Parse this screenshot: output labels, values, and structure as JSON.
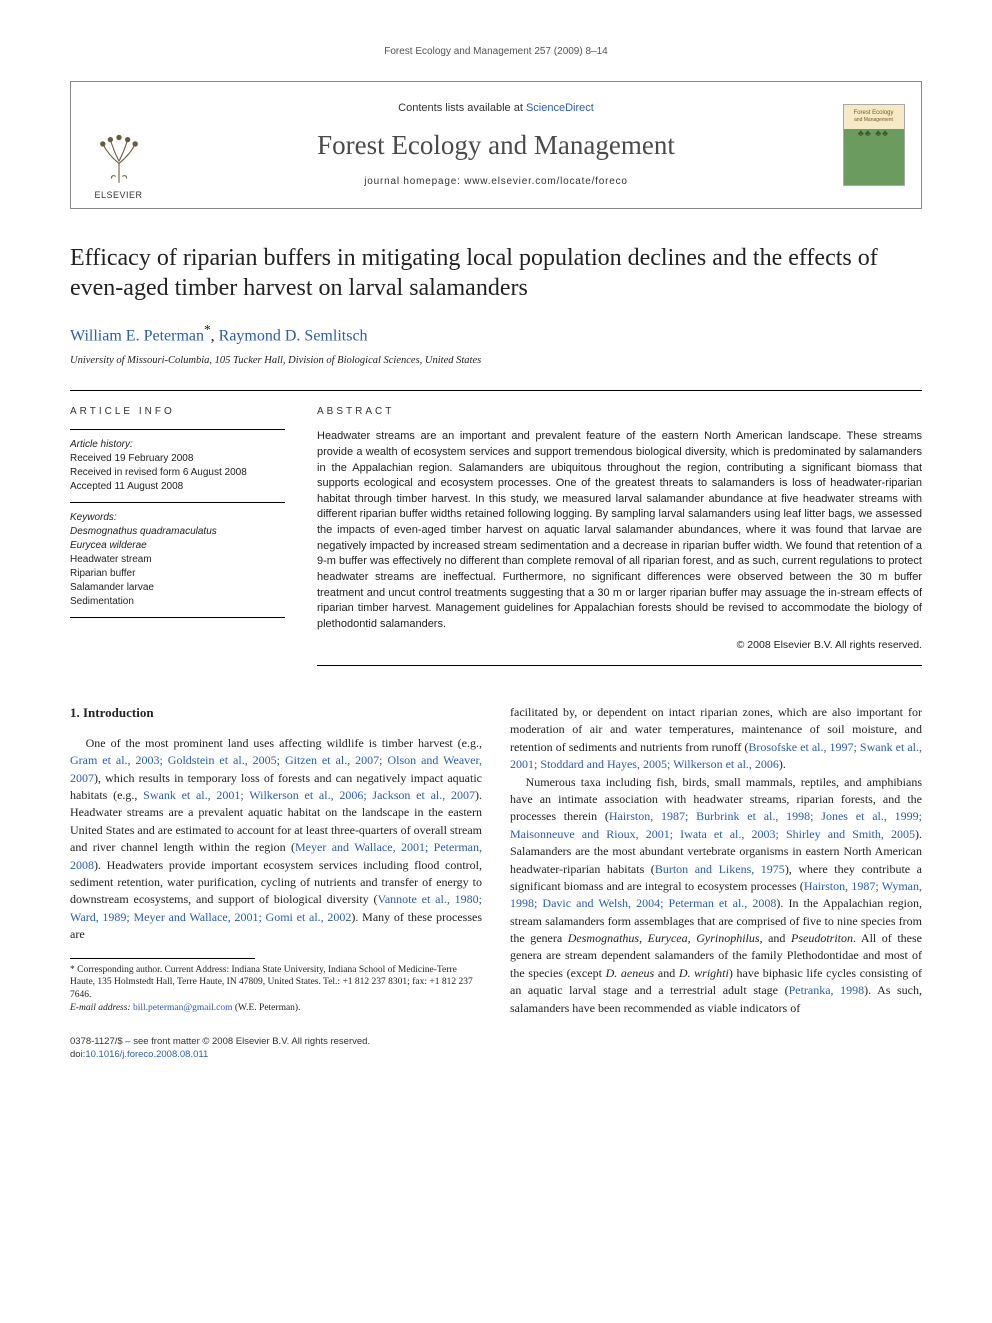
{
  "runningHead": "Forest Ecology and Management 257 (2009) 8–14",
  "banner": {
    "elsevierLabel": "ELSEVIER",
    "contentsPrefix": "Contents lists available at ",
    "contentsLink": "ScienceDirect",
    "journalName": "Forest Ecology and Management",
    "homepageLine": "journal homepage: www.elsevier.com/locate/foreco",
    "coverLine1": "Forest Ecology",
    "coverLine2": "and Management",
    "coverGlyphs": "♣♣ ♣♣"
  },
  "title": "Efficacy of riparian buffers in mitigating local population declines and the effects of even-aged timber harvest on larval salamanders",
  "authors": {
    "a1": "William E. Peterman",
    "a1sup": "*",
    "sep": ", ",
    "a2": "Raymond D. Semlitsch"
  },
  "affiliation": "University of Missouri-Columbia, 105 Tucker Hall, Division of Biological Sciences, United States",
  "info": {
    "heading": "ARTICLE INFO",
    "historyLabel": "Article history:",
    "h1": "Received 19 February 2008",
    "h2": "Received in revised form 6 August 2008",
    "h3": "Accepted 11 August 2008",
    "kwLabel": "Keywords:",
    "kw": [
      {
        "t": "Desmognathus quadramaculatus",
        "it": true
      },
      {
        "t": "Eurycea wilderae",
        "it": true
      },
      {
        "t": "Headwater stream",
        "it": false
      },
      {
        "t": "Riparian buffer",
        "it": false
      },
      {
        "t": "Salamander larvae",
        "it": false
      },
      {
        "t": "Sedimentation",
        "it": false
      }
    ]
  },
  "abstract": {
    "heading": "ABSTRACT",
    "text": "Headwater streams are an important and prevalent feature of the eastern North American landscape. These streams provide a wealth of ecosystem services and support tremendous biological diversity, which is predominated by salamanders in the Appalachian region. Salamanders are ubiquitous throughout the region, contributing a significant biomass that supports ecological and ecosystem processes. One of the greatest threats to salamanders is loss of headwater-riparian habitat through timber harvest. In this study, we measured larval salamander abundance at five headwater streams with different riparian buffer widths retained following logging. By sampling larval salamanders using leaf litter bags, we assessed the impacts of even-aged timber harvest on aquatic larval salamander abundances, where it was found that larvae are negatively impacted by increased stream sedimentation and a decrease in riparian buffer width. We found that retention of a 9-m buffer was effectively no different than complete removal of all riparian forest, and as such, current regulations to protect headwater streams are ineffectual. Furthermore, no significant differences were observed between the 30 m buffer treatment and uncut control treatments suggesting that a 30 m or larger riparian buffer may assuage the in-stream effects of riparian timber harvest. Management guidelines for Appalachian forests should be revised to accommodate the biology of plethodontid salamanders.",
    "copyright": "© 2008 Elsevier B.V. All rights reserved."
  },
  "body": {
    "sectionNum": "1.",
    "sectionTitle": "Introduction",
    "leftHtml": "One of the most prominent land uses affecting wildlife is timber harvest (e.g., <a href='#' data-name='cite-link' data-interactable='true'>Gram et al., 2003; Goldstein et al., 2005; Gitzen et al., 2007; Olson and Weaver, 2007</a>), which results in temporary loss of forests and can negatively impact aquatic habitats (e.g., <a href='#' data-name='cite-link' data-interactable='true'>Swank et al., 2001; Wilkerson et al., 2006; Jackson et al., 2007</a>). Headwater streams are a prevalent aquatic habitat on the landscape in the eastern United States and are estimated to account for at least three-quarters of overall stream and river channel length within the region (<a href='#' data-name='cite-link' data-interactable='true'>Meyer and Wallace, 2001; Peterman, 2008</a>). Headwaters provide important ecosystem services including flood control, sediment retention, water purification, cycling of nutrients and transfer of energy to downstream ecosystems, and support of biological diversity (<a href='#' data-name='cite-link' data-interactable='true'>Vannote et al., 1980; Ward, 1989; Meyer and Wallace, 2001; Gomi et al., 2002</a>). Many of these processes are",
    "rightHtml1": "facilitated by, or dependent on intact riparian zones, which are also important for moderation of air and water temperatures, maintenance of soil moisture, and retention of sediments and nutrients from runoff (<a href='#' data-name='cite-link' data-interactable='true'>Brosofske et al., 1997; Swank et al., 2001; Stoddard and Hayes, 2005; Wilkerson et al., 2006</a>).",
    "rightHtml2": "Numerous taxa including fish, birds, small mammals, reptiles, and amphibians have an intimate association with headwater streams, riparian forests, and the processes therein (<a href='#' data-name='cite-link' data-interactable='true'>Hairston, 1987; Burbrink et al., 1998; Jones et al., 1999; Maisonneuve and Rioux, 2001; Iwata et al., 2003; Shirley and Smith, 2005</a>). Salamanders are the most abundant vertebrate organisms in eastern North American headwater-riparian habitats (<a href='#' data-name='cite-link' data-interactable='true'>Burton and Likens, 1975</a>), where they contribute a significant biomass and are integral to ecosystem processes (<a href='#' data-name='cite-link' data-interactable='true'>Hairston, 1987; Wyman, 1998; Davic and Welsh, 2004; Peterman et al., 2008</a>). In the Appalachian region, stream salamanders form assemblages that are comprised of five to nine species from the genera <span class='ital'>Desmognathus, Eurycea, Gyrinophilus,</span> and <span class='ital'>Pseudotriton</span>. All of these genera are stream dependent salamanders of the family Plethodontidae and most of the species (except <span class='ital'>D. aeneus</span> and <span class='ital'>D. wrighti</span>) have biphasic life cycles consisting of an aquatic larval stage and a terrestrial adult stage (<a href='#' data-name='cite-link' data-interactable='true'>Petranka, 1998</a>). As such, salamanders have been recommended as viable indicators of"
  },
  "footnote": {
    "text": "* Corresponding author. Current Address: Indiana State University, Indiana School of Medicine-Terre Haute, 135 Holmstedt Hall, Terre Haute, IN 47809, United States. Tel.: +1 812 237 8301; fax: +1 812 237 7646.",
    "emailLabel": "E-mail address: ",
    "email": "bill.peterman@gmail.com",
    "emailSuffix": " (W.E. Peterman)."
  },
  "footer": {
    "line1": "0378-1127/$ – see front matter © 2008 Elsevier B.V. All rights reserved.",
    "doiLabel": "doi:",
    "doi": "10.1016/j.foreco.2008.08.011"
  },
  "colors": {
    "link": "#2a5db0",
    "rule": "#000000",
    "bannerBorder": "#888888"
  }
}
